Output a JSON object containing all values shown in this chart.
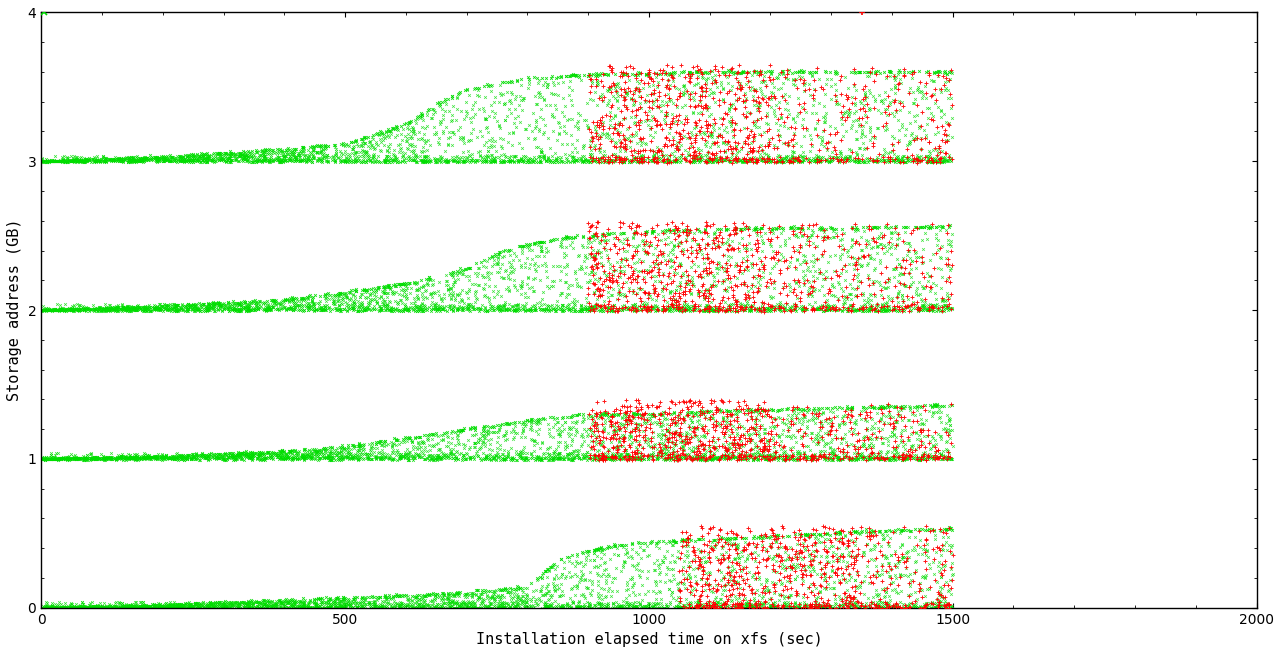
{
  "title": "",
  "xlabel": "Installation elapsed time on xfs (sec)",
  "ylabel": "Storage address (GB)",
  "xlim": [
    0,
    2000
  ],
  "ylim": [
    0,
    4
  ],
  "xticks": [
    0,
    500,
    1000,
    1500,
    2000
  ],
  "yticks": [
    0,
    1,
    2,
    3,
    4
  ],
  "green_color": "#00dd00",
  "red_color": "#ff0000",
  "background_color": "#ffffff",
  "seed": 42,
  "bands": [
    {
      "base": 0.0,
      "upper_curve_points": [
        [
          0,
          0.0
        ],
        [
          200,
          0.02
        ],
        [
          400,
          0.05
        ],
        [
          600,
          0.08
        ],
        [
          700,
          0.1
        ],
        [
          800,
          0.14
        ],
        [
          850,
          0.32
        ],
        [
          900,
          0.38
        ],
        [
          950,
          0.42
        ],
        [
          1000,
          0.44
        ],
        [
          1100,
          0.46
        ],
        [
          1200,
          0.48
        ],
        [
          1300,
          0.5
        ],
        [
          1400,
          0.52
        ],
        [
          1500,
          0.53
        ]
      ],
      "lower_line_y": 0.0,
      "red_x_start": 1050,
      "red_x_end": 1500,
      "red_band_top": 0.55,
      "n_green_scatter": 2000,
      "n_green_lower": 800,
      "n_green_curve": 400,
      "n_red": 600
    },
    {
      "base": 1.0,
      "upper_curve_points": [
        [
          0,
          0.0
        ],
        [
          200,
          0.02
        ],
        [
          400,
          0.05
        ],
        [
          500,
          0.08
        ],
        [
          600,
          0.14
        ],
        [
          700,
          0.2
        ],
        [
          750,
          0.22
        ],
        [
          800,
          0.26
        ],
        [
          850,
          0.28
        ],
        [
          900,
          0.3
        ],
        [
          950,
          0.3
        ],
        [
          1000,
          0.3
        ],
        [
          1100,
          0.32
        ],
        [
          1200,
          0.33
        ],
        [
          1300,
          0.34
        ],
        [
          1400,
          0.35
        ],
        [
          1500,
          0.36
        ]
      ],
      "lower_line_y": 0.0,
      "red_x_start": 900,
      "red_x_end": 1500,
      "red_band_top": 0.4,
      "n_green_scatter": 2000,
      "n_green_lower": 800,
      "n_green_curve": 400,
      "n_red": 700
    },
    {
      "base": 2.0,
      "upper_curve_points": [
        [
          0,
          0.0
        ],
        [
          200,
          0.03
        ],
        [
          400,
          0.07
        ],
        [
          500,
          0.12
        ],
        [
          600,
          0.18
        ],
        [
          650,
          0.22
        ],
        [
          700,
          0.28
        ],
        [
          750,
          0.38
        ],
        [
          800,
          0.44
        ],
        [
          850,
          0.48
        ],
        [
          900,
          0.5
        ],
        [
          950,
          0.52
        ],
        [
          1000,
          0.53
        ],
        [
          1100,
          0.54
        ],
        [
          1200,
          0.55
        ],
        [
          1300,
          0.55
        ],
        [
          1400,
          0.56
        ],
        [
          1500,
          0.56
        ]
      ],
      "lower_line_y": 0.0,
      "red_x_start": 900,
      "red_x_end": 1500,
      "red_band_top": 0.6,
      "n_green_scatter": 2000,
      "n_green_lower": 800,
      "n_green_curve": 400,
      "n_red": 700
    },
    {
      "base": 3.0,
      "upper_curve_points": [
        [
          0,
          0.0
        ],
        [
          200,
          0.03
        ],
        [
          400,
          0.08
        ],
        [
          500,
          0.12
        ],
        [
          550,
          0.18
        ],
        [
          600,
          0.25
        ],
        [
          650,
          0.38
        ],
        [
          700,
          0.48
        ],
        [
          750,
          0.52
        ],
        [
          800,
          0.56
        ],
        [
          900,
          0.58
        ],
        [
          1000,
          0.59
        ],
        [
          1100,
          0.6
        ],
        [
          1200,
          0.6
        ],
        [
          1300,
          0.6
        ],
        [
          1400,
          0.6
        ],
        [
          1500,
          0.6
        ]
      ],
      "lower_line_y": 0.0,
      "red_x_start": 900,
      "red_x_end": 1500,
      "red_band_top": 0.65,
      "n_green_scatter": 2000,
      "n_green_lower": 800,
      "n_green_curve": 400,
      "n_red": 700
    }
  ]
}
